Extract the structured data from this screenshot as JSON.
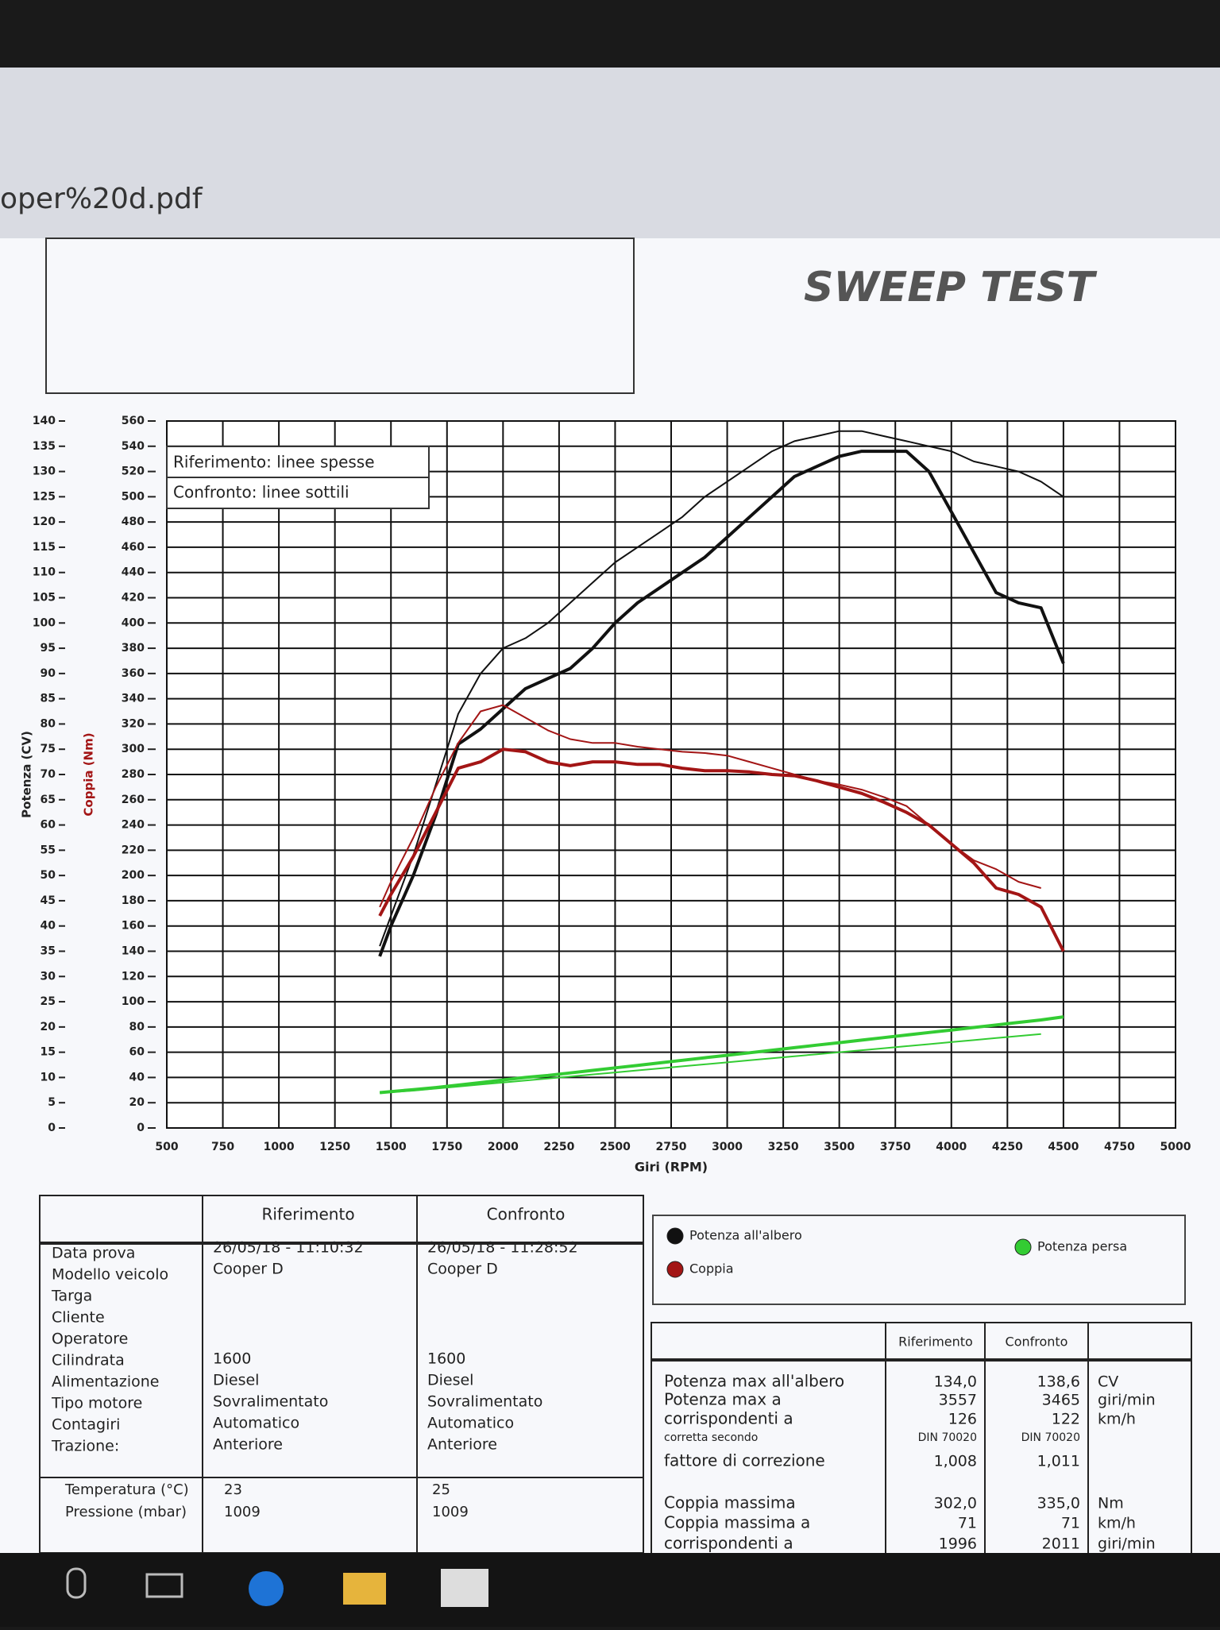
{
  "window": {
    "filename": "oper%20d.pdf"
  },
  "header": {
    "title": "SWEEP TEST"
  },
  "chart_data": {
    "type": "line",
    "xlabel": "Giri (RPM)",
    "ylabel": "Potenza (CV)",
    "y2label": "Coppia (Nm)",
    "line_styles": [
      "Riferimento: linee spesse",
      "Confronto: linee sottili"
    ],
    "x": [
      1450,
      1500,
      1600,
      1700,
      1800,
      1900,
      2000,
      2100,
      2200,
      2300,
      2400,
      2500,
      2600,
      2700,
      2800,
      2900,
      3000,
      3100,
      3200,
      3300,
      3400,
      3500,
      3600,
      3700,
      3800,
      3900,
      4000,
      4100,
      4200,
      4300,
      4400,
      4500
    ],
    "series": [
      {
        "name": "Potenza all'albero",
        "color": "#111111",
        "axis": "y",
        "values": [
          34,
          40,
          50,
          62,
          76,
          79,
          83,
          87,
          89,
          91,
          95,
          100,
          104,
          107,
          110,
          113,
          117,
          121,
          125,
          129,
          131,
          133,
          134,
          134,
          134,
          130,
          122,
          114,
          106,
          104,
          103,
          92
        ],
        "compare_values": [
          36,
          42,
          54,
          68,
          82,
          90,
          95,
          97,
          100,
          104,
          108,
          112,
          115,
          118,
          121,
          125,
          128,
          131,
          134,
          136,
          137,
          138,
          138,
          137,
          136,
          135,
          134,
          132,
          131,
          130,
          128,
          125
        ]
      },
      {
        "name": "Coppia",
        "color": "#a31515",
        "axis": "y2",
        "values": [
          168,
          185,
          215,
          250,
          285,
          290,
          300,
          298,
          290,
          287,
          290,
          290,
          288,
          288,
          285,
          283,
          283,
          282,
          280,
          279,
          275,
          270,
          265,
          258,
          250,
          240,
          225,
          210,
          190,
          185,
          175,
          140
        ],
        "compare_values": [
          175,
          195,
          230,
          270,
          305,
          330,
          335,
          325,
          315,
          308,
          305,
          305,
          302,
          300,
          298,
          297,
          295,
          290,
          285,
          280,
          275,
          272,
          268,
          262,
          255,
          240,
          225,
          212,
          205,
          195,
          190,
          null
        ]
      },
      {
        "name": "Potenza persa",
        "color": "#33cc33",
        "axis": "y",
        "values": [
          7,
          7.2,
          7.6,
          8,
          8.5,
          9,
          9.5,
          10,
          10.4,
          10.9,
          11.4,
          11.9,
          12.4,
          12.9,
          13.4,
          13.9,
          14.4,
          14.9,
          15.4,
          15.9,
          16.4,
          16.9,
          17.4,
          17.9,
          18.4,
          18.9,
          19.4,
          19.9,
          20.4,
          20.9,
          21.4,
          22
        ],
        "compare_values": [
          7,
          7.1,
          7.4,
          7.8,
          8.2,
          8.6,
          9,
          9.4,
          9.8,
          10.2,
          10.6,
          11,
          11.4,
          11.8,
          12.2,
          12.6,
          13,
          13.4,
          13.8,
          14.2,
          14.6,
          15,
          15.4,
          15.8,
          16.2,
          16.6,
          17,
          17.4,
          17.8,
          18.2,
          18.6,
          null
        ]
      }
    ],
    "xlim": [
      500,
      5000
    ],
    "xticks": [
      500,
      750,
      1000,
      1250,
      1500,
      1750,
      2000,
      2250,
      2500,
      2750,
      3000,
      3250,
      3500,
      3750,
      4000,
      4250,
      4500,
      4750,
      5000
    ],
    "ylim": [
      0,
      140
    ],
    "yticks": [
      0,
      5,
      10,
      15,
      20,
      25,
      30,
      35,
      40,
      45,
      50,
      55,
      60,
      65,
      70,
      75,
      80,
      85,
      90,
      95,
      100,
      105,
      110,
      115,
      120,
      125,
      130,
      135,
      140
    ],
    "y2lim": [
      0,
      560
    ],
    "y2ticks": [
      0,
      20,
      40,
      60,
      80,
      100,
      120,
      140,
      160,
      180,
      200,
      220,
      240,
      260,
      280,
      300,
      320,
      340,
      360,
      380,
      400,
      420,
      440,
      460,
      480,
      500,
      520,
      540,
      560
    ],
    "grid": true
  },
  "vehicle_table": {
    "headers": [
      "Riferimento",
      "Confronto"
    ],
    "rows": [
      {
        "label": "Data prova",
        "reference": "26/05/18 - 11:10:32",
        "comparison": "26/05/18 - 11:28:52"
      },
      {
        "label": "Modello veicolo",
        "reference": "Cooper D",
        "comparison": "Cooper D"
      },
      {
        "label": "Targa"
      },
      {
        "label": "Cliente"
      },
      {
        "label": "Operatore"
      },
      {
        "label": "Cilindrata",
        "reference": "1600",
        "comparison": "1600"
      },
      {
        "label": "Alimentazione",
        "reference": "Diesel",
        "comparison": "Diesel"
      },
      {
        "label": "Tipo motore",
        "reference": "Sovralimentato",
        "comparison": "Sovralimentato"
      },
      {
        "label": "Contagiri",
        "reference": "Automatico",
        "comparison": "Automatico"
      },
      {
        "label": "Trazione:",
        "reference": "Anteriore",
        "comparison": "Anteriore"
      }
    ],
    "conditions": [
      {
        "label": "Temperatura (°C)",
        "reference": "23",
        "comparison": "25"
      },
      {
        "label": "Pressione (mbar)",
        "reference": "1009",
        "comparison": "1009"
      }
    ]
  },
  "results_table": {
    "headers": [
      "Riferimento",
      "Confronto"
    ],
    "rows": [
      {
        "label": "Potenza max all'albero",
        "reference": "134,0",
        "comparison": "138,6",
        "unit": "CV"
      },
      {
        "label": "Potenza max a",
        "reference": "3557",
        "comparison": "3465",
        "unit": "giri/min"
      },
      {
        "label": "corrispondenti a",
        "reference": "126",
        "comparison": "122",
        "unit": "km/h"
      },
      {
        "label": "corretta secondo",
        "reference": "DIN 70020",
        "comparison": "DIN 70020"
      },
      {
        "label": "fattore di correzione",
        "reference": "1,008",
        "comparison": "1,011"
      },
      {
        "label": "Coppia massima",
        "reference": "302,0",
        "comparison": "335,0",
        "unit": "Nm"
      },
      {
        "label": "Coppia massima a",
        "reference": "71",
        "comparison": "71",
        "unit": "km/h"
      },
      {
        "label": "corrispondenti a",
        "reference": "1996",
        "comparison": "2011",
        "unit": "giri/min"
      }
    ]
  }
}
